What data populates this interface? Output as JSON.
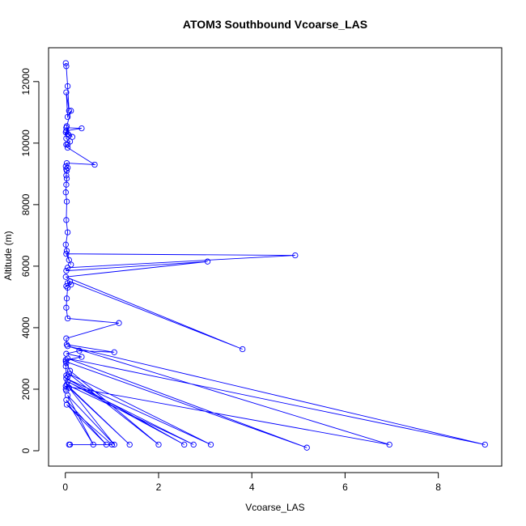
{
  "chart_data": {
    "type": "line",
    "title": "ATOM3 Southbound Vcoarse_LAS",
    "xlabel": "Vcoarse_LAS",
    "ylabel": "Altitude (m)",
    "xlim": [
      -0.36,
      9.36
    ],
    "ylim": [
      -500,
      13100
    ],
    "xticks": [
      0,
      2,
      4,
      6,
      8
    ],
    "yticks": [
      0,
      2000,
      4000,
      6000,
      8000,
      10000,
      12000
    ],
    "grid": false,
    "legend": "none",
    "colors": {
      "series": "#0000ff",
      "axis": "#000000"
    },
    "series": [
      {
        "x": [
          0.01,
          0.02,
          0.05,
          0.08,
          0.02,
          0.05,
          0.12,
          0.03,
          0.08,
          0.02,
          0.35,
          0.02,
          0.05,
          0.15,
          0.01,
          0.02,
          0.1,
          0.05,
          0.02,
          0.05,
          0.63,
          0.03,
          0.01,
          0.05,
          0.02,
          0.03,
          0.02,
          0.03,
          0.02,
          0.01,
          0.03,
          0.02,
          0.05,
          0.01,
          0.03,
          0.08,
          0.12,
          0.02,
          4.93,
          0.05,
          0.02,
          3.05,
          0.01,
          3.8,
          0.1,
          0.05,
          0.12,
          0.02,
          0.05,
          0.03,
          0.02,
          0.05,
          1.15,
          0.02,
          0.03,
          1.05,
          0.3,
          0.02,
          0.35,
          0.01,
          0.02,
          0.01,
          0.02,
          0.05,
          0.01,
          0.02,
          0.01,
          6.95,
          0.05,
          9.0,
          0.05,
          5.18,
          0.01,
          0.1,
          2.0,
          0.08,
          3.12,
          0.02,
          2.55,
          0.05,
          2.75,
          0.03,
          1.38,
          0.08,
          1.05,
          0.05,
          0.6,
          0.02,
          0.88,
          0.03,
          1.0,
          0.08,
          0.1
        ],
        "y": [
          12600,
          12500,
          11850,
          11050,
          11650,
          10850,
          11050,
          10550,
          10250,
          10500,
          10480,
          10400,
          10300,
          10200,
          10350,
          10150,
          10050,
          9950,
          9950,
          9850,
          9300,
          9350,
          9250,
          9200,
          9150,
          9100,
          8950,
          8850,
          8650,
          8400,
          8100,
          7500,
          7100,
          6700,
          6500,
          6200,
          6050,
          6400,
          6350,
          5950,
          5850,
          6150,
          5650,
          3300,
          5500,
          5450,
          5400,
          5350,
          5300,
          4950,
          4650,
          4300,
          4150,
          3650,
          3450,
          3200,
          3250,
          3150,
          3050,
          2950,
          2850,
          2750,
          2450,
          2400,
          2000,
          1950,
          2100,
          200,
          3400,
          200,
          3000,
          100,
          2900,
          2600,
          200,
          2500,
          200,
          2350,
          200,
          2250,
          200,
          2150,
          200,
          2050,
          200,
          1800,
          200,
          1650,
          200,
          1500,
          200,
          200,
          200
        ]
      }
    ]
  }
}
